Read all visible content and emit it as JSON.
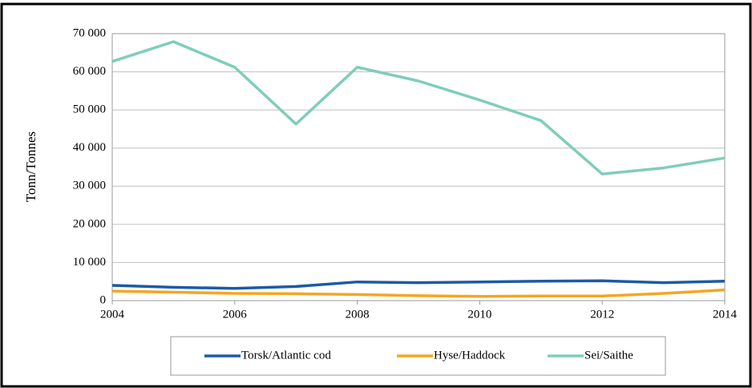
{
  "chart_data": {
    "type": "line",
    "y_label": "Tonn/Tonnes",
    "x": [
      2004,
      2005,
      2006,
      2007,
      2008,
      2009,
      2010,
      2011,
      2012,
      2013,
      2014
    ],
    "xlim": [
      2004,
      2014
    ],
    "xticks": [
      2004,
      2006,
      2008,
      2010,
      2012,
      2014
    ],
    "ylim": [
      0,
      70000
    ],
    "yticks": [
      0,
      {
        "value": 10000,
        "label": "10 000"
      },
      {
        "value": 20000,
        "label": "20 000"
      },
      {
        "value": 30000,
        "label": "30 000"
      },
      {
        "value": 40000,
        "label": "40 000"
      },
      {
        "value": 50000,
        "label": "50 000"
      },
      {
        "value": 60000,
        "label": "60 000"
      },
      {
        "value": 70000,
        "label": "70 000"
      }
    ],
    "grid": true,
    "series": [
      {
        "name": "Torsk/Atlantic cod",
        "color": "#1c5aa6",
        "values": [
          4000,
          3500,
          3200,
          3700,
          4900,
          4700,
          4900,
          5100,
          5200,
          4700,
          5100
        ]
      },
      {
        "name": "Hyse/Haddock",
        "color": "#f5a623",
        "values": [
          2500,
          2200,
          1900,
          1800,
          1600,
          1300,
          1100,
          1200,
          1200,
          1900,
          2800
        ]
      },
      {
        "name": "Sei/Saithe",
        "color": "#7fcdbb",
        "values": [
          62700,
          67900,
          61200,
          46300,
          61200,
          57600,
          52600,
          47200,
          33200,
          34800,
          37400
        ]
      }
    ]
  }
}
